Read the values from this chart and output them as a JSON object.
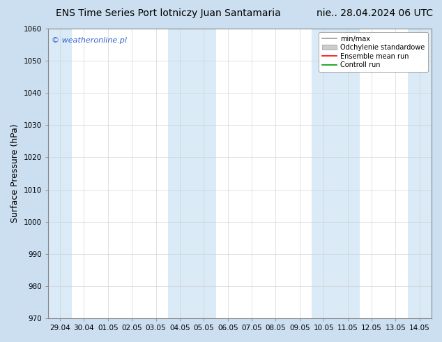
{
  "title_left": "ENS Time Series Port lotniczy Juan Santamaria",
  "title_right": "nie.. 28.04.2024 06 UTC",
  "ylabel": "Surface Pressure (hPa)",
  "ylim": [
    970,
    1060
  ],
  "yticks": [
    970,
    980,
    990,
    1000,
    1010,
    1020,
    1030,
    1040,
    1050,
    1060
  ],
  "x_labels": [
    "29.04",
    "30.04",
    "01.05",
    "02.05",
    "03.05",
    "04.05",
    "05.05",
    "06.05",
    "07.05",
    "08.05",
    "09.05",
    "10.05",
    "11.05",
    "12.05",
    "13.05",
    "14.05"
  ],
  "x_positions": [
    0,
    1,
    2,
    3,
    4,
    5,
    6,
    7,
    8,
    9,
    10,
    11,
    12,
    13,
    14,
    15
  ],
  "shaded_x_indices": [
    0,
    5,
    6,
    11,
    12,
    15
  ],
  "band_color": "#daeaf7",
  "bg_color": "#ffffff",
  "plot_bg_color": "#ffffff",
  "outer_bg_color": "#ccdff0",
  "watermark": "© weatheronline.pl",
  "watermark_color": "#3366cc",
  "legend_items": [
    {
      "label": "min/max",
      "color": "#999999",
      "lw": 1.2
    },
    {
      "label": "Odchylenie standardowe",
      "color": "#cccccc",
      "lw": 6
    },
    {
      "label": "Ensemble mean run",
      "color": "#ff0000",
      "lw": 1.2
    },
    {
      "label": "Controll run",
      "color": "#009900",
      "lw": 1.2
    }
  ],
  "title_fontsize": 10,
  "tick_fontsize": 7.5,
  "ylabel_fontsize": 9
}
